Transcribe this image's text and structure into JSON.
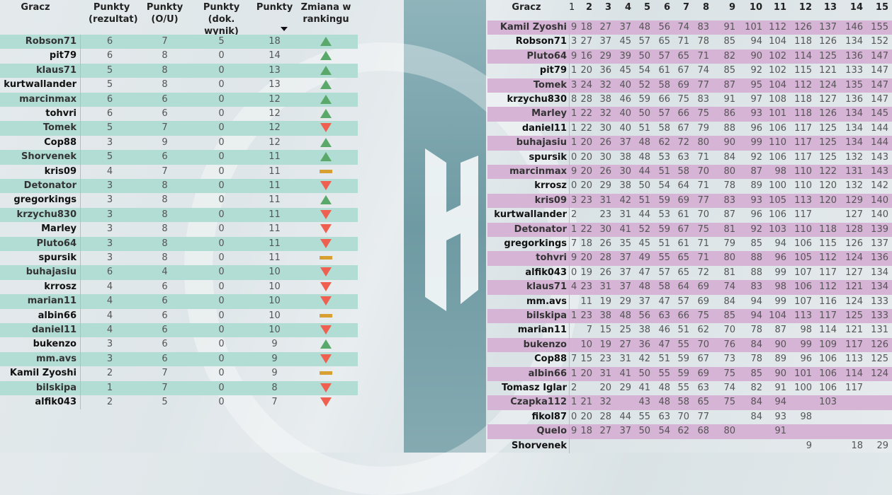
{
  "colors": {
    "left_row": "#b2ddd5",
    "right_row": "#d6b4d6",
    "up": "#5aa96a",
    "down": "#f06050",
    "same": "#d8a030"
  },
  "left": {
    "headers": {
      "player": "Gracz",
      "result": "Punkty (rezultat)",
      "ou": "Punkty (O/U)",
      "exact": "Punkty (dok. wynik)",
      "points": "Punkty",
      "change": "Zmiana w rankingu"
    },
    "sort": "Punkty descending",
    "rows": [
      {
        "name": "Robson71",
        "result": 6,
        "ou": 7,
        "exact": 5,
        "points": 18,
        "change": "up"
      },
      {
        "name": "pit79",
        "result": 6,
        "ou": 8,
        "exact": 0,
        "points": 14,
        "change": "up"
      },
      {
        "name": "klaus71",
        "result": 5,
        "ou": 8,
        "exact": 0,
        "points": 13,
        "change": "up"
      },
      {
        "name": "kurtwallander",
        "result": 5,
        "ou": 8,
        "exact": 0,
        "points": 13,
        "change": "up"
      },
      {
        "name": "marcinmax",
        "result": 6,
        "ou": 6,
        "exact": 0,
        "points": 12,
        "change": "up"
      },
      {
        "name": "tohvri",
        "result": 6,
        "ou": 6,
        "exact": 0,
        "points": 12,
        "change": "up"
      },
      {
        "name": "Tomek",
        "result": 5,
        "ou": 7,
        "exact": 0,
        "points": 12,
        "change": "down"
      },
      {
        "name": "Cop88",
        "result": 3,
        "ou": 9,
        "exact": 0,
        "points": 12,
        "change": "up"
      },
      {
        "name": "Shorvenek",
        "result": 5,
        "ou": 6,
        "exact": 0,
        "points": 11,
        "change": "up"
      },
      {
        "name": "kris09",
        "result": 4,
        "ou": 7,
        "exact": 0,
        "points": 11,
        "change": "same"
      },
      {
        "name": "Detonator",
        "result": 3,
        "ou": 8,
        "exact": 0,
        "points": 11,
        "change": "down"
      },
      {
        "name": "gregorkings",
        "result": 3,
        "ou": 8,
        "exact": 0,
        "points": 11,
        "change": "up"
      },
      {
        "name": "krzychu830",
        "result": 3,
        "ou": 8,
        "exact": 0,
        "points": 11,
        "change": "down"
      },
      {
        "name": "Marley",
        "result": 3,
        "ou": 8,
        "exact": 0,
        "points": 11,
        "change": "down"
      },
      {
        "name": "Pluto64",
        "result": 3,
        "ou": 8,
        "exact": 0,
        "points": 11,
        "change": "down"
      },
      {
        "name": "spursik",
        "result": 3,
        "ou": 8,
        "exact": 0,
        "points": 11,
        "change": "same"
      },
      {
        "name": "buhajasiu",
        "result": 6,
        "ou": 4,
        "exact": 0,
        "points": 10,
        "change": "down"
      },
      {
        "name": "krrosz",
        "result": 4,
        "ou": 6,
        "exact": 0,
        "points": 10,
        "change": "down"
      },
      {
        "name": "marian11",
        "result": 4,
        "ou": 6,
        "exact": 0,
        "points": 10,
        "change": "down"
      },
      {
        "name": "albin66",
        "result": 4,
        "ou": 6,
        "exact": 0,
        "points": 10,
        "change": "same"
      },
      {
        "name": "daniel11",
        "result": 4,
        "ou": 6,
        "exact": 0,
        "points": 10,
        "change": "down"
      },
      {
        "name": "bukenzo",
        "result": 3,
        "ou": 6,
        "exact": 0,
        "points": 9,
        "change": "up"
      },
      {
        "name": "mm.avs",
        "result": 3,
        "ou": 6,
        "exact": 0,
        "points": 9,
        "change": "down"
      },
      {
        "name": "Kamil Zyoshi",
        "result": 2,
        "ou": 7,
        "exact": 0,
        "points": 9,
        "change": "same"
      },
      {
        "name": "bilskipa",
        "result": 1,
        "ou": 7,
        "exact": 0,
        "points": 8,
        "change": "down"
      },
      {
        "name": "alfik043",
        "result": 2,
        "ou": 5,
        "exact": 0,
        "points": 7,
        "change": "down"
      }
    ]
  },
  "right": {
    "headers": [
      "Gracz",
      "1",
      "2",
      "3",
      "4",
      "5",
      "6",
      "7",
      "8",
      "9",
      "10",
      "11",
      "12",
      "13",
      "14",
      "15"
    ],
    "rows": [
      {
        "name": "Kamil Zyoshi",
        "v": [
          9,
          18,
          27,
          37,
          48,
          56,
          74,
          83,
          91,
          101,
          112,
          126,
          137,
          146,
          155
        ]
      },
      {
        "name": "Robson71",
        "v": [
          3,
          27,
          37,
          45,
          57,
          65,
          71,
          78,
          85,
          94,
          104,
          118,
          126,
          134,
          152
        ]
      },
      {
        "name": "Pluto64",
        "v": [
          9,
          16,
          29,
          39,
          50,
          57,
          65,
          71,
          82,
          90,
          102,
          114,
          125,
          136,
          147
        ]
      },
      {
        "name": "pit79",
        "v": [
          1,
          20,
          36,
          45,
          54,
          61,
          67,
          74,
          85,
          92,
          102,
          115,
          121,
          133,
          147
        ]
      },
      {
        "name": "Tomek",
        "v": [
          3,
          24,
          32,
          40,
          52,
          58,
          69,
          77,
          87,
          95,
          104,
          112,
          124,
          135,
          147
        ]
      },
      {
        "name": "krzychu830",
        "v": [
          8,
          28,
          38,
          46,
          59,
          66,
          75,
          83,
          91,
          97,
          108,
          118,
          127,
          136,
          147
        ]
      },
      {
        "name": "Marley",
        "v": [
          1,
          22,
          32,
          40,
          50,
          57,
          66,
          75,
          86,
          93,
          101,
          118,
          126,
          134,
          145
        ]
      },
      {
        "name": "daniel11",
        "v": [
          1,
          22,
          30,
          40,
          51,
          58,
          67,
          79,
          88,
          96,
          106,
          117,
          125,
          134,
          144
        ]
      },
      {
        "name": "buhajasiu",
        "v": [
          1,
          20,
          26,
          37,
          48,
          62,
          72,
          80,
          90,
          99,
          110,
          117,
          125,
          134,
          144
        ]
      },
      {
        "name": "spursik",
        "v": [
          0,
          20,
          30,
          38,
          48,
          53,
          63,
          71,
          84,
          92,
          106,
          117,
          125,
          132,
          143
        ]
      },
      {
        "name": "marcinmax",
        "v": [
          9,
          20,
          26,
          30,
          44,
          51,
          58,
          70,
          80,
          87,
          98,
          110,
          122,
          131,
          143
        ]
      },
      {
        "name": "krrosz",
        "v": [
          0,
          20,
          29,
          38,
          50,
          54,
          64,
          71,
          78,
          89,
          100,
          110,
          120,
          132,
          142
        ]
      },
      {
        "name": "kris09",
        "v": [
          3,
          23,
          31,
          42,
          51,
          59,
          69,
          77,
          83,
          93,
          105,
          113,
          120,
          129,
          140
        ]
      },
      {
        "name": "kurtwallander",
        "v": [
          2,
          "",
          23,
          31,
          44,
          53,
          61,
          70,
          87,
          96,
          106,
          117,
          "",
          127,
          140
        ]
      },
      {
        "name": "Detonator",
        "v": [
          1,
          22,
          30,
          41,
          52,
          59,
          67,
          75,
          81,
          92,
          103,
          110,
          118,
          128,
          139
        ]
      },
      {
        "name": "gregorkings",
        "v": [
          7,
          18,
          26,
          35,
          45,
          51,
          61,
          71,
          79,
          85,
          94,
          106,
          115,
          126,
          137
        ]
      },
      {
        "name": "tohvri",
        "v": [
          9,
          20,
          28,
          37,
          49,
          55,
          65,
          71,
          80,
          88,
          96,
          105,
          112,
          124,
          136
        ]
      },
      {
        "name": "alfik043",
        "v": [
          0,
          19,
          26,
          37,
          47,
          57,
          65,
          72,
          81,
          88,
          99,
          107,
          117,
          127,
          134
        ]
      },
      {
        "name": "klaus71",
        "v": [
          4,
          23,
          31,
          37,
          48,
          58,
          64,
          69,
          74,
          83,
          98,
          106,
          112,
          121,
          134
        ]
      },
      {
        "name": "mm.avs",
        "v": [
          "",
          11,
          19,
          29,
          37,
          47,
          57,
          69,
          84,
          94,
          99,
          107,
          116,
          124,
          133
        ]
      },
      {
        "name": "bilskipa",
        "v": [
          1,
          23,
          38,
          48,
          56,
          63,
          66,
          75,
          85,
          94,
          104,
          113,
          117,
          125,
          133
        ]
      },
      {
        "name": "marian11",
        "v": [
          "",
          7,
          15,
          25,
          38,
          46,
          51,
          62,
          70,
          78,
          87,
          98,
          114,
          121,
          131
        ]
      },
      {
        "name": "bukenzo",
        "v": [
          "",
          10,
          19,
          27,
          36,
          47,
          55,
          70,
          76,
          84,
          90,
          99,
          109,
          117,
          126
        ]
      },
      {
        "name": "Cop88",
        "v": [
          7,
          15,
          23,
          31,
          42,
          51,
          59,
          67,
          73,
          78,
          89,
          96,
          106,
          113,
          125
        ]
      },
      {
        "name": "albin66",
        "v": [
          1,
          20,
          31,
          41,
          50,
          55,
          59,
          69,
          75,
          85,
          90,
          101,
          106,
          114,
          124
        ]
      },
      {
        "name": "Tomasz Iglar",
        "v": [
          2,
          "",
          20,
          29,
          41,
          48,
          55,
          63,
          74,
          82,
          91,
          100,
          106,
          117,
          ""
        ]
      },
      {
        "name": "Czapka112",
        "v": [
          1,
          21,
          32,
          "",
          43,
          48,
          58,
          65,
          75,
          84,
          94,
          "",
          103,
          "",
          ""
        ]
      },
      {
        "name": "fikol87",
        "v": [
          0,
          20,
          28,
          44,
          55,
          63,
          70,
          77,
          "",
          84,
          93,
          98,
          "",
          "",
          ""
        ]
      },
      {
        "name": "Quelo",
        "v": [
          9,
          18,
          27,
          37,
          50,
          54,
          62,
          68,
          80,
          "",
          91,
          "",
          "",
          "",
          ""
        ]
      },
      {
        "name": "Shorvenek",
        "v": [
          "",
          "",
          "",
          "",
          "",
          "",
          "",
          "",
          "",
          "",
          "",
          9,
          "",
          18,
          29
        ]
      }
    ]
  }
}
